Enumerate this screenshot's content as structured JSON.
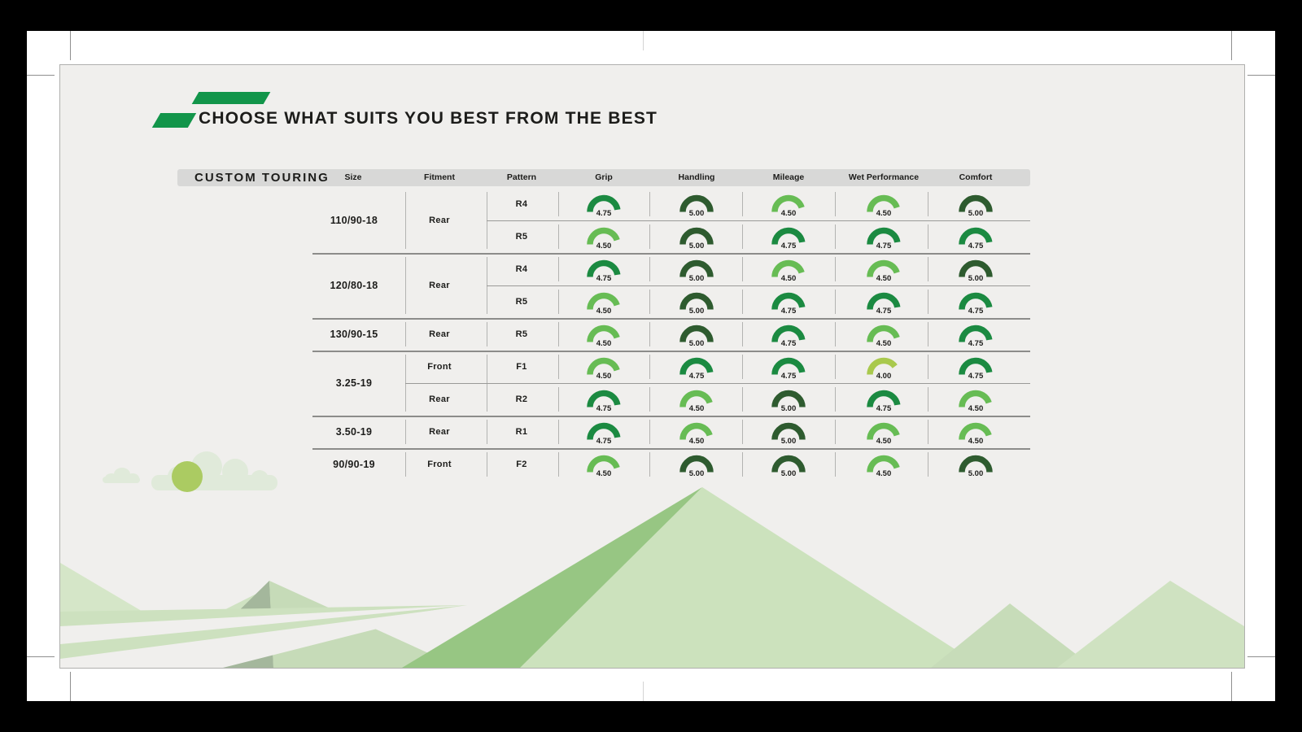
{
  "page": {
    "title": "CHOOSE WHAT SUITS YOU BEST FROM THE BEST",
    "brand_series": "CUSTOM TOURING"
  },
  "table": {
    "columns": [
      "Size",
      "Fitment",
      "Pattern",
      "Grip",
      "Handling",
      "Mileage",
      "Wet Performance",
      "Comfort"
    ],
    "rating_scale_max": 5,
    "rating_colors": {
      "5.00": "#2e5b2f",
      "4.75": "#1b8a41",
      "4.50": "#67bc54",
      "4.00": "#a9c94d"
    },
    "groups": [
      {
        "size": "110/90-18",
        "rows": [
          {
            "fitment": "Rear",
            "fitment_rowspan": 2,
            "pattern": "R4",
            "ratings": [
              "4.75",
              "5.00",
              "4.50",
              "4.50",
              "5.00"
            ]
          },
          {
            "pattern": "R5",
            "ratings": [
              "4.50",
              "5.00",
              "4.75",
              "4.75",
              "4.75"
            ]
          }
        ]
      },
      {
        "size": "120/80-18",
        "rows": [
          {
            "fitment": "Rear",
            "fitment_rowspan": 2,
            "pattern": "R4",
            "ratings": [
              "4.75",
              "5.00",
              "4.50",
              "4.50",
              "5.00"
            ]
          },
          {
            "pattern": "R5",
            "ratings": [
              "4.50",
              "5.00",
              "4.75",
              "4.75",
              "4.75"
            ]
          }
        ]
      },
      {
        "size": "130/90-15",
        "rows": [
          {
            "fitment": "Rear",
            "pattern": "R5",
            "ratings": [
              "4.50",
              "5.00",
              "4.75",
              "4.50",
              "4.75"
            ]
          }
        ]
      },
      {
        "size": "3.25-19",
        "rows": [
          {
            "fitment": "Front",
            "pattern": "F1",
            "ratings": [
              "4.50",
              "4.75",
              "4.75",
              "4.00",
              "4.75"
            ]
          },
          {
            "fitment": "Rear",
            "pattern": "R2",
            "ratings": [
              "4.75",
              "4.50",
              "5.00",
              "4.75",
              "4.50"
            ]
          }
        ]
      },
      {
        "size": "3.50-19",
        "rows": [
          {
            "fitment": "Rear",
            "pattern": "R1",
            "ratings": [
              "4.75",
              "4.50",
              "5.00",
              "4.50",
              "4.50"
            ]
          }
        ]
      },
      {
        "size": "90/90-19",
        "rows": [
          {
            "fitment": "Front",
            "pattern": "F2",
            "ratings": [
              "4.50",
              "5.00",
              "5.00",
              "4.50",
              "5.00"
            ]
          }
        ]
      }
    ]
  },
  "chart_data": {
    "type": "table",
    "title": "CHOOSE WHAT SUITS YOU BEST FROM THE BEST",
    "section": "CUSTOM TOURING",
    "columns": [
      "Size",
      "Fitment",
      "Pattern",
      "Grip",
      "Handling",
      "Mileage",
      "Wet Performance",
      "Comfort"
    ],
    "rating_max": 5,
    "gauge_style": "semicircle",
    "rows": [
      [
        "110/90-18",
        "Rear",
        "R4",
        4.75,
        5.0,
        4.5,
        4.5,
        5.0
      ],
      [
        "110/90-18",
        "Rear",
        "R5",
        4.5,
        5.0,
        4.75,
        4.75,
        4.75
      ],
      [
        "120/80-18",
        "Rear",
        "R4",
        4.75,
        5.0,
        4.5,
        4.5,
        5.0
      ],
      [
        "120/80-18",
        "Rear",
        "R5",
        4.5,
        5.0,
        4.75,
        4.75,
        4.75
      ],
      [
        "130/90-15",
        "Rear",
        "R5",
        4.5,
        5.0,
        4.75,
        4.5,
        4.75
      ],
      [
        "3.25-19",
        "Front",
        "F1",
        4.5,
        4.75,
        4.75,
        4.0,
        4.75
      ],
      [
        "3.25-19",
        "Rear",
        "R2",
        4.75,
        4.5,
        5.0,
        4.75,
        4.5
      ],
      [
        "3.50-19",
        "Rear",
        "R1",
        4.75,
        4.5,
        5.0,
        4.5,
        4.5
      ],
      [
        "90/90-19",
        "Front",
        "F2",
        4.5,
        5.0,
        5.0,
        4.5,
        5.0
      ]
    ]
  },
  "colors": {
    "accent_green": "#12954a",
    "slide_background": "#f0efed",
    "header_pill": "#d8d8d7",
    "mountain_light": "#cce2bd",
    "mountain_ridge": "#97c683",
    "bush_circle": "#abcb62"
  }
}
